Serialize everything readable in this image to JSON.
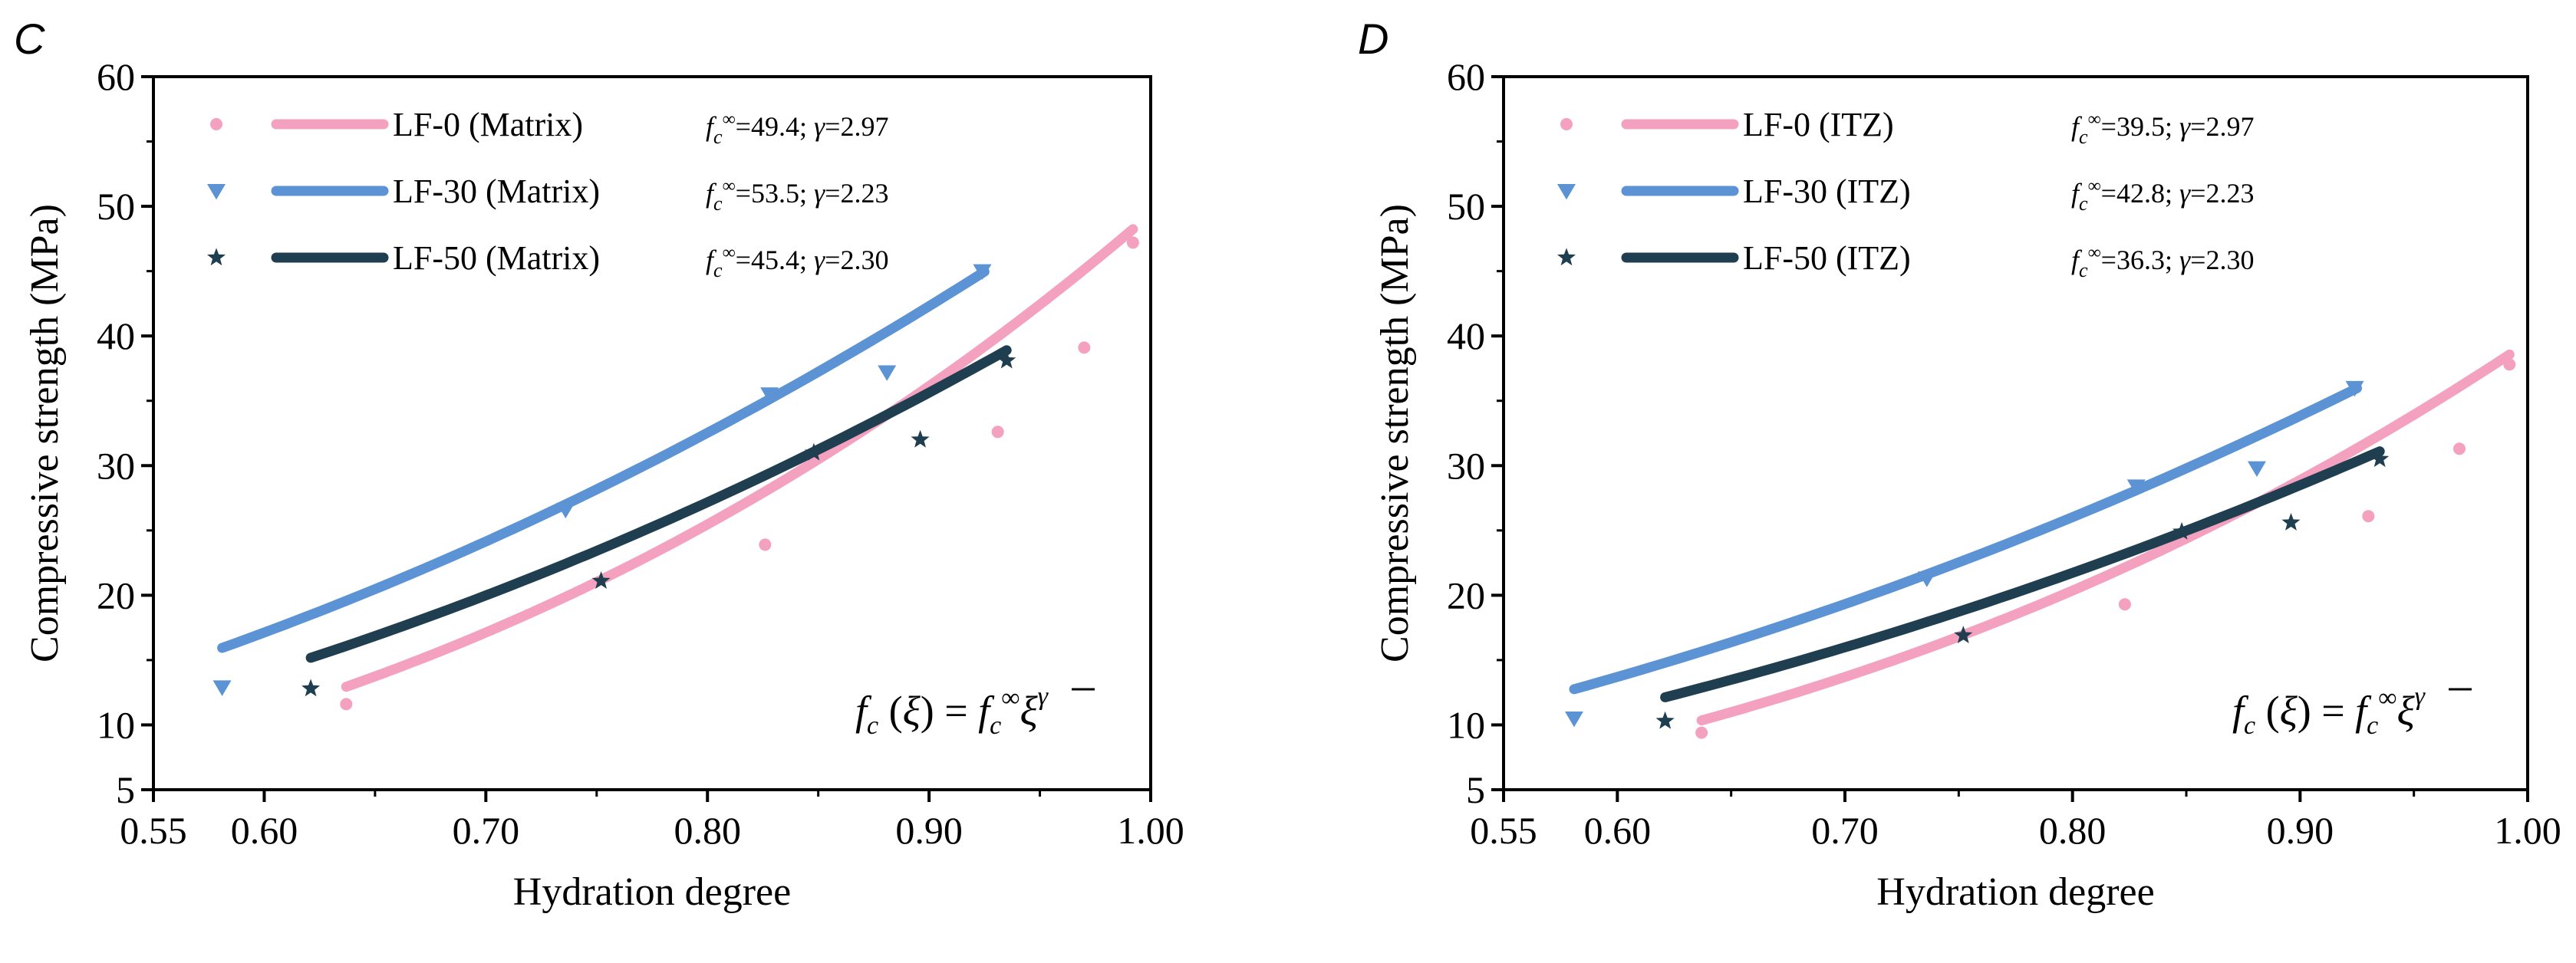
{
  "chart_data": [
    {
      "type": "scatter",
      "panel_label": "C",
      "xlabel": "Hydration degree",
      "ylabel": "Compressive strength (MPa)",
      "xlim": [
        0.55,
        1.0
      ],
      "ylim": [
        5,
        60
      ],
      "xticks": [
        "0.55",
        "0.60",
        "0.70",
        "0.80",
        "0.90",
        "1.00"
      ],
      "yticks": [
        "5",
        "10",
        "20",
        "30",
        "40",
        "50",
        "60"
      ],
      "formula": {
        "lhs": "f",
        "sub": "c",
        "xi": "ξ",
        "eq": "=",
        "inf": "∞",
        "xibar": "ξ",
        "gamma": "γ"
      },
      "series": [
        {
          "name": "LF-0 (Matrix)",
          "color": "#F4A1BF",
          "marker": "circle",
          "param_text": "=49.4; ",
          "fc_inf": 49.4,
          "gamma": 2.97,
          "gamma_text": "=2.97",
          "fit_range": [
            0.637,
            0.992
          ],
          "x": [
            0.637,
            0.826,
            0.931,
            0.97,
            0.992
          ],
          "y": [
            11.6,
            23.9,
            32.6,
            39.1,
            47.2
          ]
        },
        {
          "name": "LF-30 (Matrix)",
          "color": "#5B93D4",
          "marker": "triangle-down",
          "param_text": "=53.5; ",
          "fc_inf": 53.5,
          "gamma": 2.23,
          "gamma_text": "=2.23",
          "fit_range": [
            0.581,
            0.925
          ],
          "x": [
            0.581,
            0.736,
            0.828,
            0.881,
            0.924
          ],
          "y": [
            12.9,
            26.6,
            35.5,
            37.2,
            45.0
          ]
        },
        {
          "name": "LF-50 (Matrix)",
          "color": "#1F3E50",
          "marker": "star",
          "param_text": "=45.4; ",
          "fc_inf": 45.4,
          "gamma": 2.3,
          "gamma_text": "=2.30",
          "fit_range": [
            0.621,
            0.935
          ],
          "x": [
            0.621,
            0.752,
            0.848,
            0.896,
            0.935
          ],
          "y": [
            12.8,
            21.1,
            31.0,
            32.0,
            38.1
          ]
        }
      ]
    },
    {
      "type": "scatter",
      "panel_label": "D",
      "xlabel": "Hydration degree",
      "ylabel": "Compressive strength (MPa)",
      "xlim": [
        0.55,
        1.0
      ],
      "ylim": [
        5,
        60
      ],
      "xticks": [
        "0.55",
        "0.60",
        "0.70",
        "0.80",
        "0.90",
        "1.00"
      ],
      "yticks": [
        "5",
        "10",
        "20",
        "30",
        "40",
        "50",
        "60"
      ],
      "formula": {
        "lhs": "f",
        "sub": "c",
        "xi": "ξ",
        "eq": "=",
        "inf": "∞",
        "xibar": "ξ",
        "gamma": "γ"
      },
      "series": [
        {
          "name": "LF-0 (ITZ)",
          "color": "#F4A1BF",
          "marker": "circle",
          "param_text": "=39.5; ",
          "fc_inf": 39.5,
          "gamma": 2.97,
          "gamma_text": "=2.97",
          "fit_range": [
            0.637,
            0.992
          ],
          "x": [
            0.637,
            0.823,
            0.93,
            0.97,
            0.992
          ],
          "y": [
            9.4,
            19.3,
            26.1,
            31.3,
            37.8
          ]
        },
        {
          "name": "LF-30 (ITZ)",
          "color": "#5B93D4",
          "marker": "triangle-down",
          "param_text": "=42.8; ",
          "fc_inf": 42.8,
          "gamma": 2.23,
          "gamma_text": "=2.23",
          "fit_range": [
            0.581,
            0.925
          ],
          "x": [
            0.581,
            0.736,
            0.828,
            0.881,
            0.924
          ],
          "y": [
            10.5,
            21.3,
            28.4,
            29.8,
            36.0
          ]
        },
        {
          "name": "LF-50 (ITZ)",
          "color": "#1F3E50",
          "marker": "star",
          "param_text": "=36.3; ",
          "fc_inf": 36.3,
          "gamma": 2.3,
          "gamma_text": "=2.30",
          "fit_range": [
            0.621,
            0.935
          ],
          "x": [
            0.621,
            0.752,
            0.848,
            0.896,
            0.935
          ],
          "y": [
            10.3,
            16.9,
            24.9,
            25.6,
            30.5
          ]
        }
      ]
    }
  ]
}
